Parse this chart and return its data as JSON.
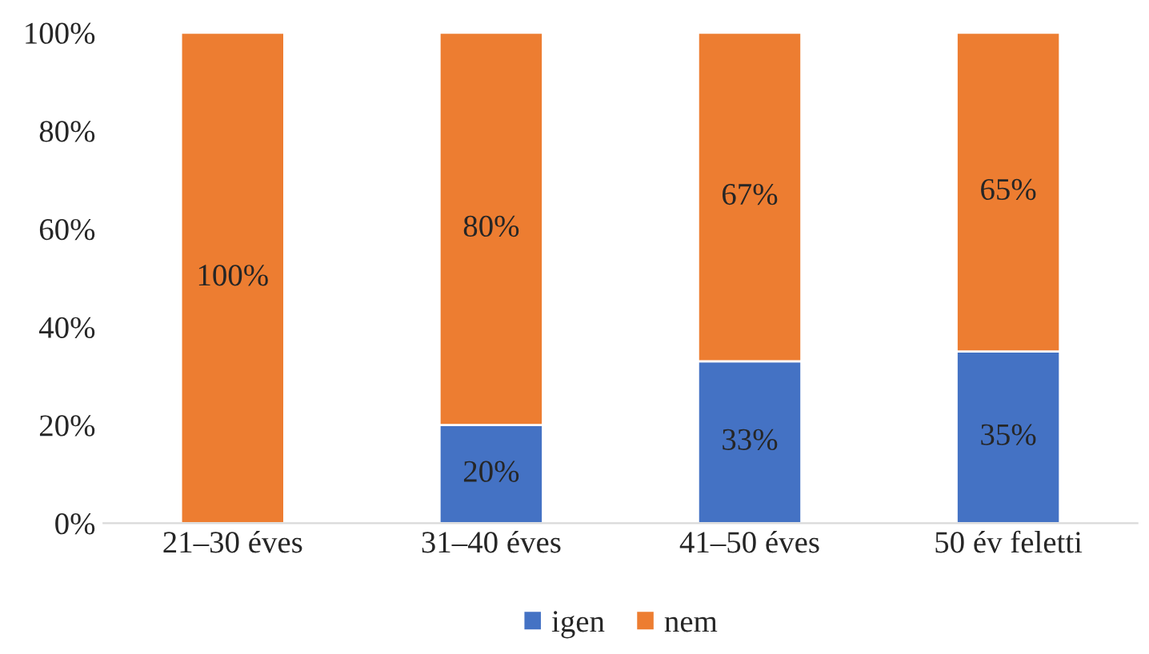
{
  "chart_data": {
    "type": "bar",
    "stacked": true,
    "categories": [
      "21–30 éves",
      "31–40 éves",
      "41–50 éves",
      "50 év feletti"
    ],
    "series": [
      {
        "name": "igen",
        "color": "#4472c4",
        "values": [
          0,
          20,
          33,
          35
        ],
        "value_labels": [
          null,
          "20%",
          "33%",
          "35%"
        ]
      },
      {
        "name": "nem",
        "color": "#ed7d31",
        "values": [
          100,
          80,
          67,
          65
        ],
        "value_labels": [
          "100%",
          "80%",
          "67%",
          "65%"
        ]
      }
    ],
    "ylim": [
      0,
      100
    ],
    "yticks": [
      {
        "value": 0,
        "label": "0%"
      },
      {
        "value": 20,
        "label": "20%"
      },
      {
        "value": 40,
        "label": "40%"
      },
      {
        "value": 60,
        "label": "60%"
      },
      {
        "value": 80,
        "label": "80%"
      },
      {
        "value": 100,
        "label": "100%"
      }
    ],
    "grid": false,
    "legend": "bottom"
  }
}
